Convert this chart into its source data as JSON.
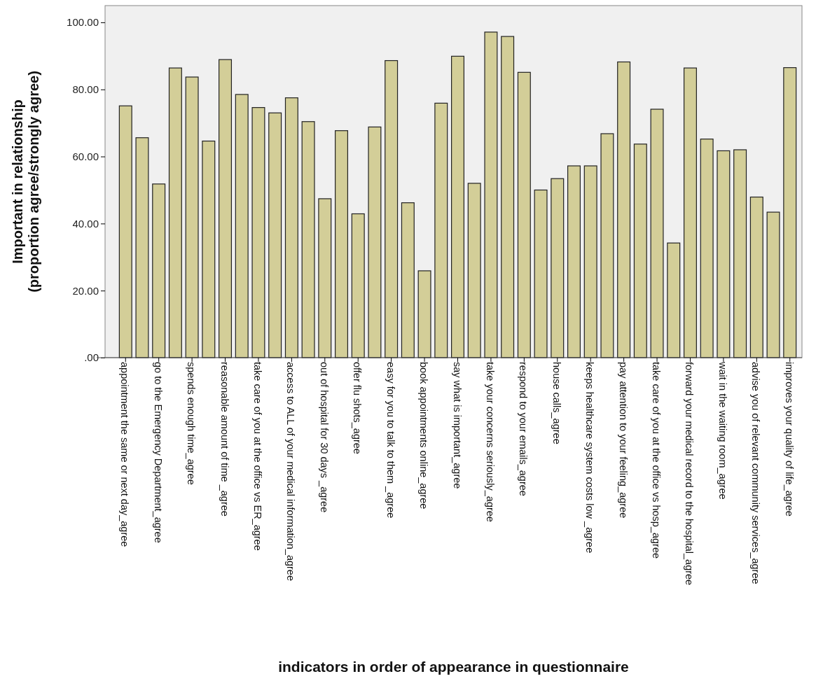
{
  "chart_data": {
    "type": "bar",
    "xlabel": "indicators in order of appearance in questionnaire",
    "ylabel": "Important in relationship\n(proportion agree/strongly agree)",
    "categories": [
      "appointment the same or next day_agree",
      null,
      "go to the Emergency Department_agree",
      null,
      "spends enough time_agree",
      null,
      "reasonable amount of time _agree",
      null,
      "take care of you at the office vs ER_agree",
      null,
      "access to ALL of your medical information_agree",
      null,
      "out of hospital for 30 days _agree",
      null,
      "offer flu shots_agree",
      null,
      "easy for you to talk to them _agree",
      null,
      "book appointments online_agree",
      null,
      "say what is important_agree",
      null,
      "take your concerns seriously_agree",
      null,
      "respond to your emails_agree",
      null,
      "house calls_agree",
      null,
      "keeps healthcare system costs low _agree",
      null,
      "pay attention to your feeling_agree",
      null,
      "take care of you at the office vs hosp_agree",
      null,
      "forward your medical record to the hospital_agree",
      null,
      "wait in the waiting room_agree",
      null,
      "advise you of relevant community services_agree",
      null,
      "improves your quality of life_agree"
    ],
    "values": [
      75.1,
      65.6,
      51.8,
      86.4,
      83.7,
      64.6,
      88.9,
      78.5,
      74.6,
      73.0,
      77.5,
      70.4,
      47.4,
      67.7,
      42.9,
      68.8,
      88.6,
      46.2,
      25.9,
      75.9,
      89.9,
      52.0,
      97.1,
      95.8,
      85.1,
      50.0,
      53.4,
      57.2,
      57.2,
      66.8,
      88.2,
      63.7,
      74.1,
      34.2,
      86.4,
      65.2,
      61.7,
      62.0,
      47.9,
      43.4,
      86.5
    ],
    "color": "#d3ce98",
    "ylim": [
      0,
      105
    ],
    "yticks": [
      {
        "value": 0,
        "label": ".00"
      },
      {
        "value": 20,
        "label": "20.00"
      },
      {
        "value": 40,
        "label": "40.00"
      },
      {
        "value": 60,
        "label": "60.00"
      },
      {
        "value": 80,
        "label": "80.00"
      },
      {
        "value": 100,
        "label": "100.00"
      }
    ],
    "grid": false
  }
}
